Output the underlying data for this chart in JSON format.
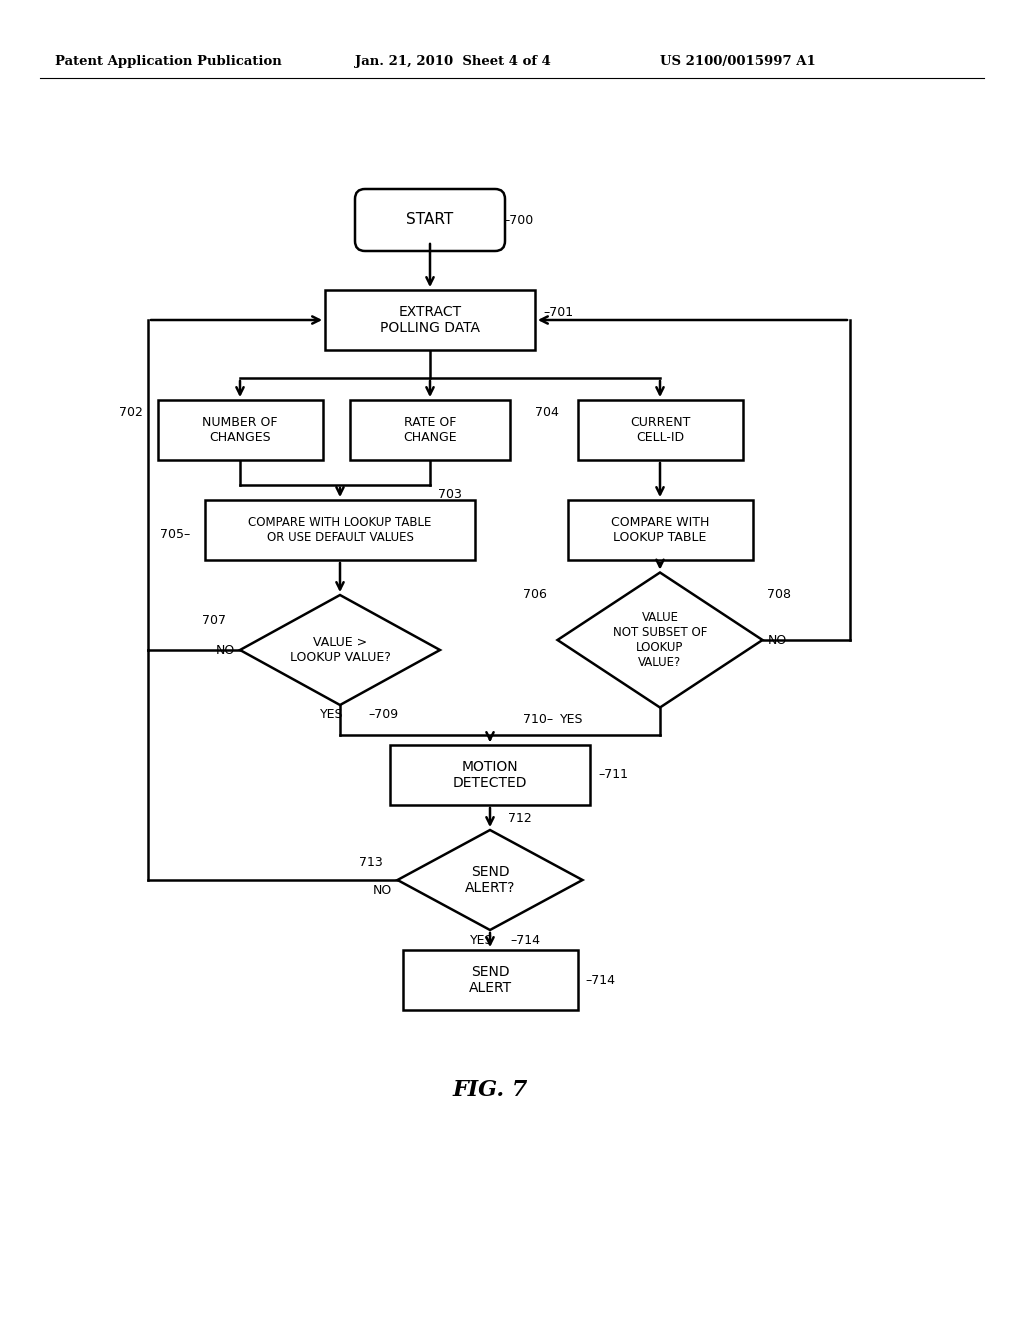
{
  "bg_color": "#ffffff",
  "header_left": "Patent Application Publication",
  "header_mid": "Jan. 21, 2010  Sheet 4 of 4",
  "header_right": "US 2100/0015997 A1",
  "fig_label": "FIG. 7",
  "lw": 1.8
}
